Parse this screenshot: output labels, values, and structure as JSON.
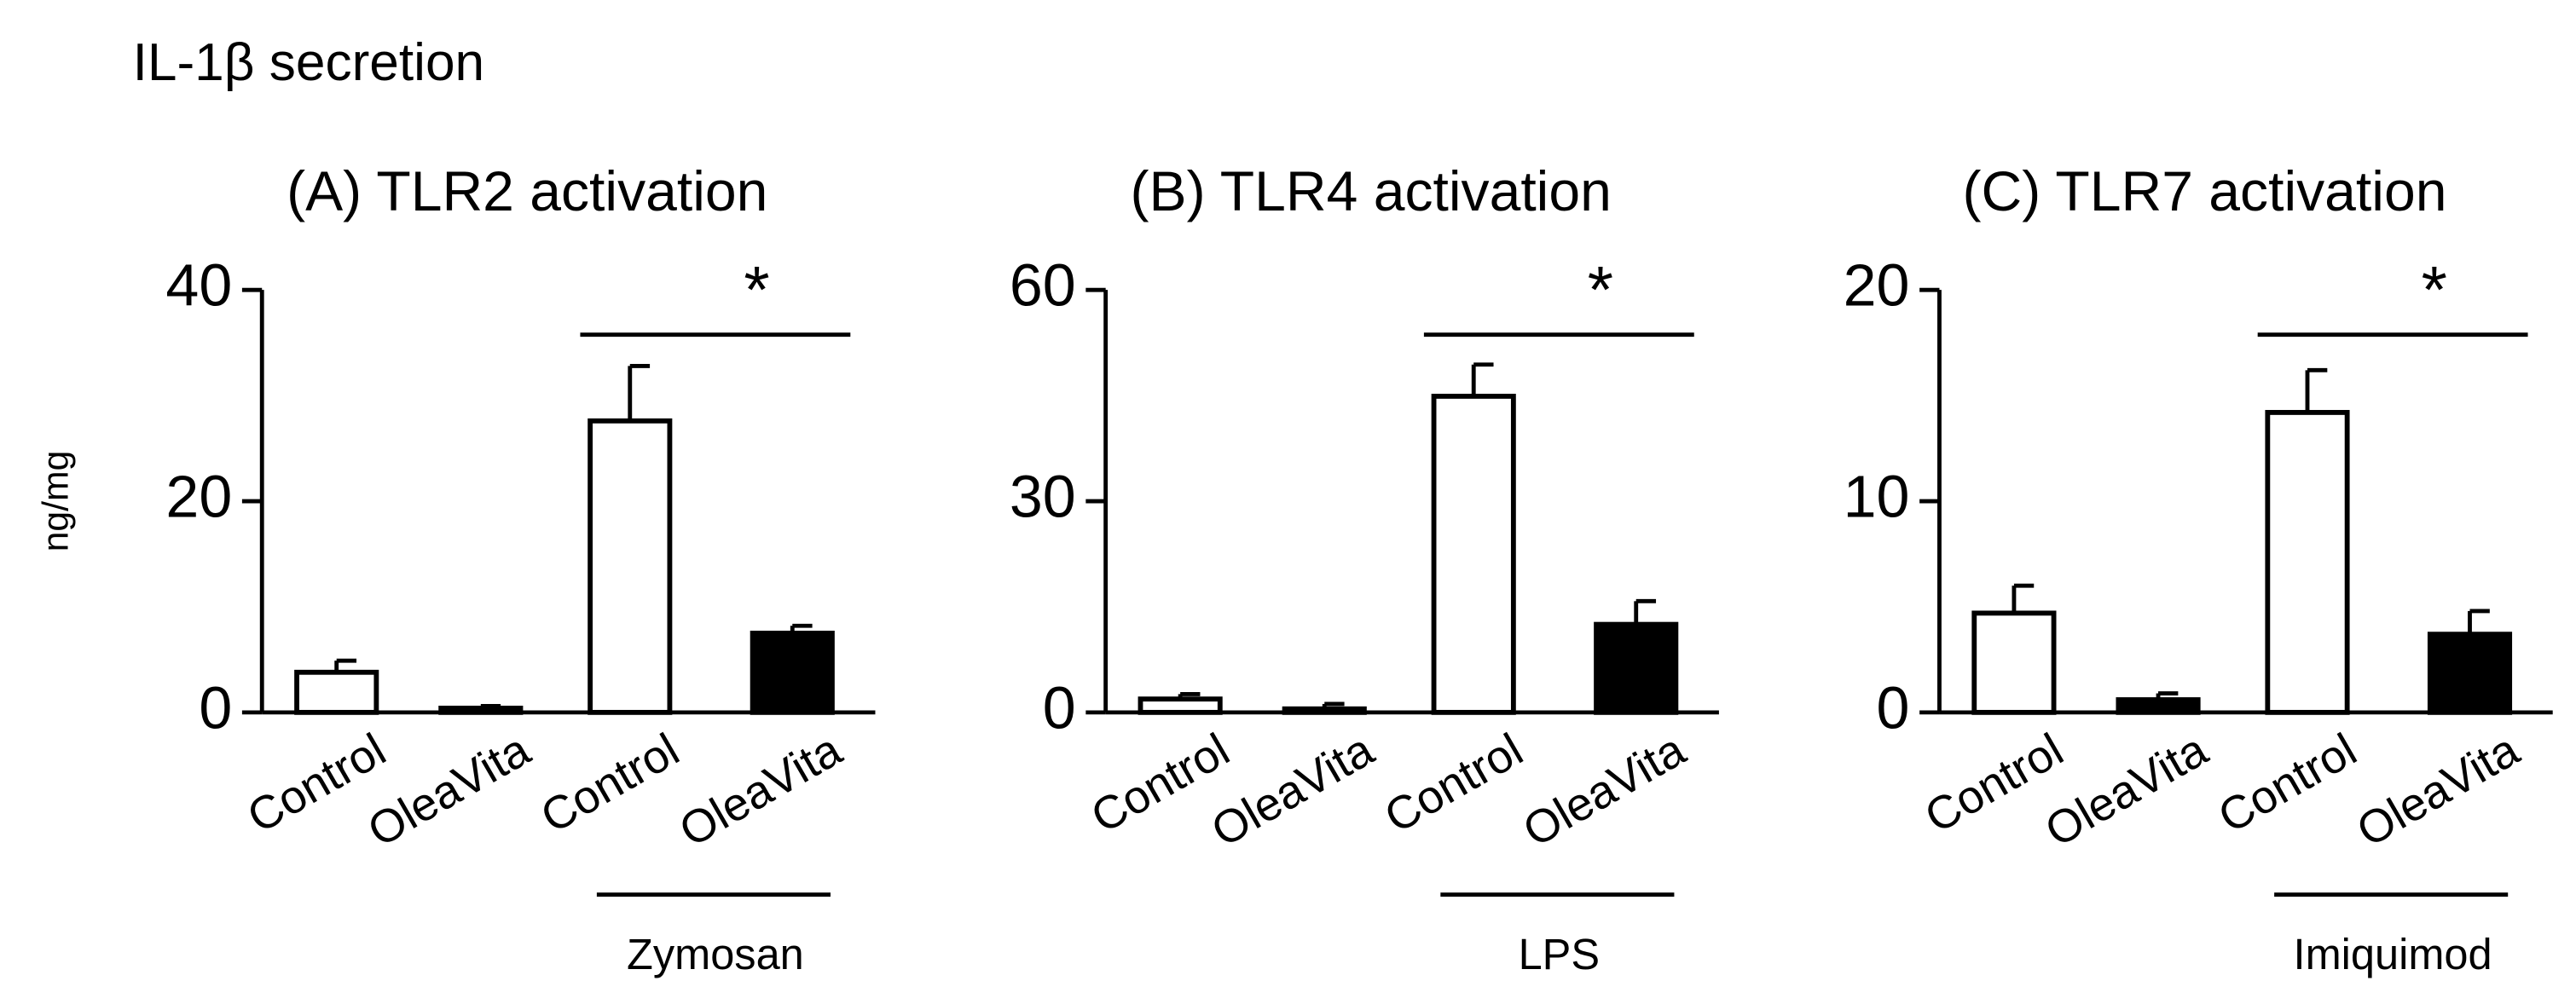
{
  "title": "IL-1β secretion",
  "chart_data": [
    {
      "type": "bar",
      "title": "(A) TLR2 activation",
      "ylabel": "ng/mg",
      "categories": [
        "Control",
        "OleaVita",
        "Control",
        "OleaVita"
      ],
      "values": [
        3.8,
        0.4,
        27.6,
        7.5
      ],
      "errors": [
        1.1,
        0.2,
        5.2,
        0.7
      ],
      "colors": [
        "#ffffff",
        "#000000",
        "#ffffff",
        "#000000"
      ],
      "ylim": [
        0,
        40
      ],
      "yticks": [
        0,
        20,
        40
      ],
      "annotation": "*",
      "group_label": "Zymosan"
    },
    {
      "type": "bar",
      "title": "(B) TLR4 activation",
      "categories": [
        "Control",
        "OleaVita",
        "Control",
        "OleaVita"
      ],
      "values": [
        1.9,
        0.5,
        44.9,
        12.5
      ],
      "errors": [
        0.7,
        0.7,
        4.5,
        3.3
      ],
      "colors": [
        "#ffffff",
        "#000000",
        "#ffffff",
        "#000000"
      ],
      "ylim": [
        0,
        60
      ],
      "yticks": [
        0,
        30,
        60
      ],
      "annotation": "*",
      "group_label": "LPS"
    },
    {
      "type": "bar",
      "title": "(C) TLR7 activation",
      "categories": [
        "Control",
        "OleaVita",
        "Control",
        "OleaVita"
      ],
      "values": [
        4.7,
        0.6,
        14.2,
        3.7
      ],
      "errors": [
        1.3,
        0.3,
        2.0,
        1.1
      ],
      "colors": [
        "#ffffff",
        "#000000",
        "#ffffff",
        "#000000"
      ],
      "ylim": [
        0,
        20
      ],
      "yticks": [
        0,
        10,
        20
      ],
      "annotation": "*",
      "group_label": "Imiquimod"
    }
  ]
}
